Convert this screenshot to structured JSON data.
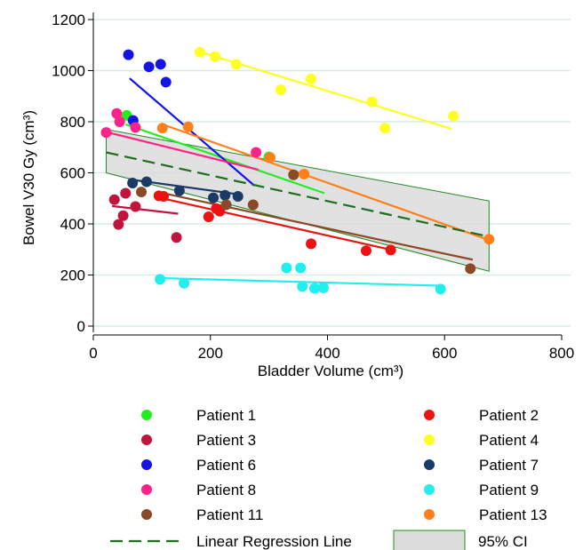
{
  "chart_data": {
    "type": "scatter",
    "xlabel": "Bladder Volume (cm³)",
    "ylabel": "Bowel V30 Gy (cm³)",
    "xlim": [
      0,
      800
    ],
    "ylim": [
      0,
      1200
    ],
    "x_ticks": [
      "0",
      "200",
      "400",
      "600",
      "800"
    ],
    "y_ticks": [
      "0",
      "200",
      "400",
      "600",
      "800",
      "1000",
      "1200"
    ],
    "grid": "horizontal",
    "legend_position": "bottom",
    "series": [
      {
        "name": "Patient 1",
        "color": "#22ee22",
        "points": [
          [
            57,
            825
          ],
          [
            300,
            662
          ]
        ],
        "fit": [
          [
            55,
            790
          ],
          [
            395,
            520
          ]
        ]
      },
      {
        "name": "Patient 2",
        "color": "#ee1111",
        "points": [
          [
            112,
            510
          ],
          [
            120,
            508
          ],
          [
            197,
            428
          ],
          [
            210,
            460
          ],
          [
            216,
            450
          ],
          [
            372,
            322
          ],
          [
            466,
            295
          ],
          [
            508,
            298
          ]
        ],
        "fit": [
          [
            108,
            505
          ],
          [
            510,
            298
          ]
        ]
      },
      {
        "name": "Patient 3",
        "color": "#c0143c",
        "points": [
          [
            36,
            495
          ],
          [
            43,
            398
          ],
          [
            51,
            432
          ],
          [
            55,
            520
          ],
          [
            72,
            468
          ],
          [
            142,
            347
          ]
        ],
        "fit": [
          [
            32,
            470
          ],
          [
            145,
            440
          ]
        ]
      },
      {
        "name": "Patient 4",
        "color": "#ffff22",
        "points": [
          [
            182,
            1072
          ],
          [
            208,
            1055
          ],
          [
            244,
            1025
          ],
          [
            320,
            925
          ],
          [
            372,
            968
          ],
          [
            476,
            878
          ],
          [
            498,
            775
          ],
          [
            615,
            822
          ]
        ],
        "fit": [
          [
            180,
            1075
          ],
          [
            612,
            772
          ]
        ]
      },
      {
        "name": "Patient 6",
        "color": "#1414e6",
        "points": [
          [
            60,
            1062
          ],
          [
            95,
            1015
          ],
          [
            115,
            1025
          ],
          [
            124,
            955
          ],
          [
            68,
            805
          ]
        ],
        "fit": [
          [
            62,
            970
          ],
          [
            275,
            550
          ]
        ]
      },
      {
        "name": "Patient 7",
        "color": "#1c3a66",
        "points": [
          [
            67,
            560
          ],
          [
            91,
            565
          ],
          [
            147,
            530
          ],
          [
            205,
            502
          ],
          [
            225,
            512
          ],
          [
            247,
            508
          ]
        ],
        "fit": [
          [
            60,
            575
          ],
          [
            250,
            515
          ]
        ]
      },
      {
        "name": "Patient 8",
        "color": "#ff2288",
        "points": [
          [
            22,
            758
          ],
          [
            40,
            832
          ],
          [
            45,
            800
          ],
          [
            72,
            778
          ],
          [
            278,
            680
          ]
        ],
        "fit": [
          [
            22,
            760
          ],
          [
            282,
            612
          ]
        ]
      },
      {
        "name": "Patient 9",
        "color": "#22eeee",
        "points": [
          [
            114,
            183
          ],
          [
            155,
            168
          ],
          [
            330,
            228
          ],
          [
            354,
            228
          ],
          [
            357,
            155
          ],
          [
            378,
            148
          ],
          [
            393,
            150
          ],
          [
            593,
            145
          ]
        ],
        "fit": [
          [
            112,
            188
          ],
          [
            595,
            158
          ]
        ]
      },
      {
        "name": "Patient 11",
        "color": "#8a4a28",
        "points": [
          [
            82,
            525
          ],
          [
            227,
            475
          ],
          [
            273,
            475
          ],
          [
            342,
            592
          ],
          [
            644,
            225
          ]
        ],
        "fit": [
          [
            110,
            525
          ],
          [
            648,
            260
          ]
        ]
      },
      {
        "name": "Patient 13",
        "color": "#ff7f1a",
        "points": [
          [
            118,
            775
          ],
          [
            162,
            780
          ],
          [
            302,
            660
          ],
          [
            360,
            595
          ],
          [
            676,
            340
          ]
        ],
        "fit": [
          [
            118,
            790
          ],
          [
            672,
            340
          ]
        ]
      }
    ],
    "regression_line": {
      "name": "Linear Regression Line",
      "color": "#1e6e1e",
      "x": [
        22,
        676
      ],
      "y": [
        680,
        350
      ]
    },
    "confidence_band": {
      "name": "95% CI",
      "fill": "#dcdcdc",
      "stroke": "#228b22",
      "upper": [
        [
          22,
          770
        ],
        [
          676,
          490
        ]
      ],
      "lower": [
        [
          22,
          600
        ],
        [
          676,
          215
        ]
      ]
    }
  }
}
